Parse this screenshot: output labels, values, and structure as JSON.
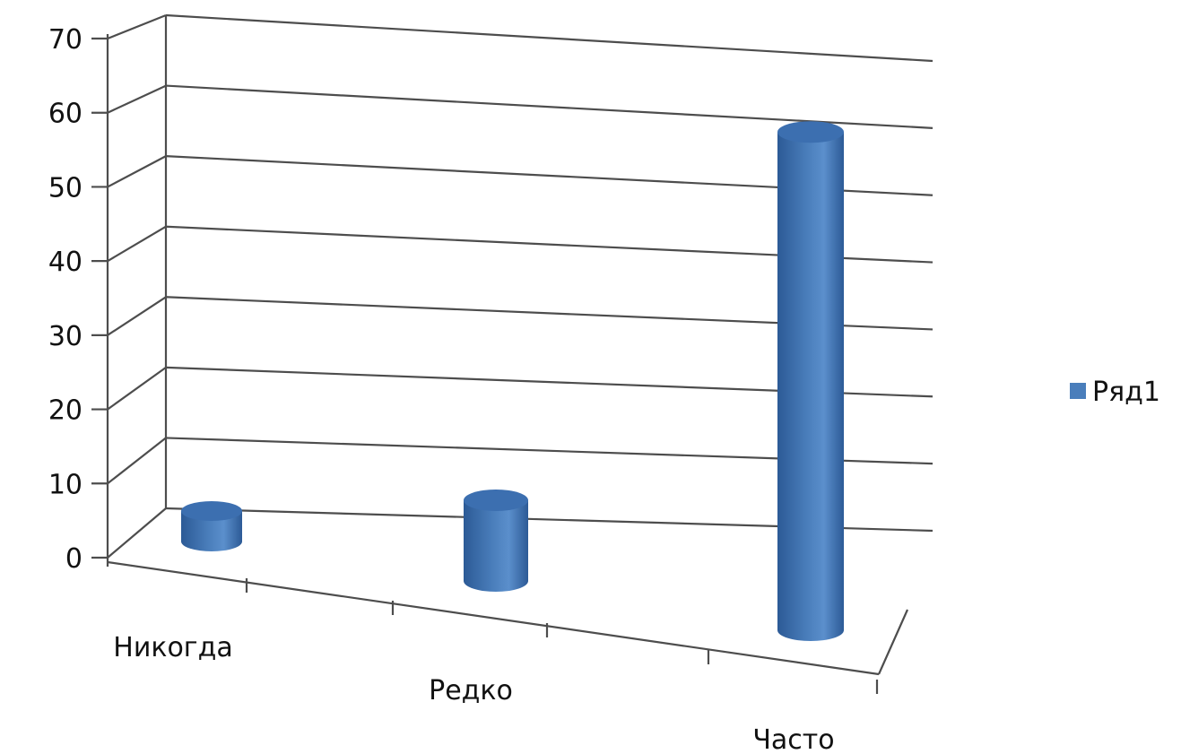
{
  "chart_data": {
    "type": "bar",
    "style": "3d-cylinder",
    "categories": [
      "Никогда",
      "Редко",
      "Часто"
    ],
    "series": [
      {
        "name": "Ряд1",
        "values": [
          5,
          9,
          65
        ],
        "color": "#4a7ebb"
      }
    ],
    "yticks": [
      "0",
      "10",
      "20",
      "30",
      "40",
      "50",
      "60",
      "70"
    ],
    "ylim": [
      0,
      70
    ],
    "grid": true,
    "legend": "right"
  },
  "colors": {
    "bar": "#4a7ebb",
    "bar_dark": "#2c5a96",
    "bar_top": "#3c6fb0",
    "grid": "#4d4d4d"
  }
}
